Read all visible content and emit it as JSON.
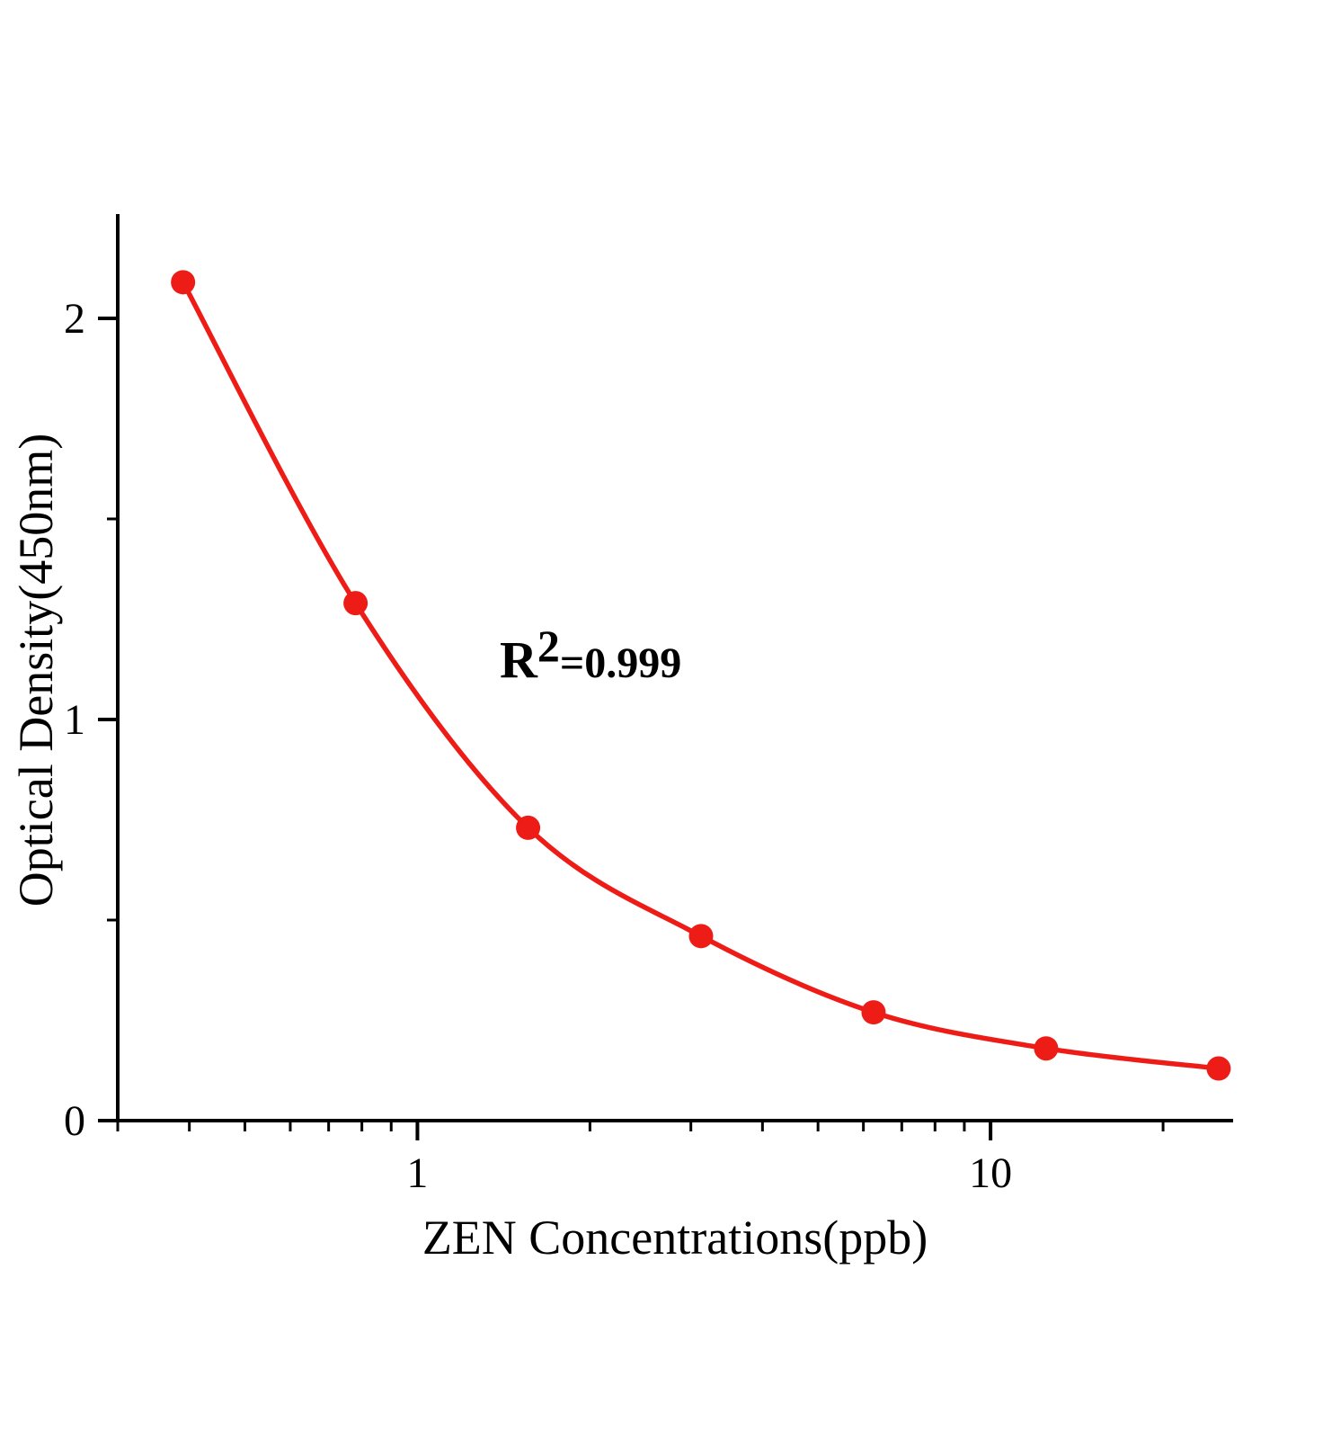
{
  "chart_data": {
    "type": "scatter",
    "title": "",
    "xlabel": "ZEN Concentrations(ppb)",
    "ylabel": "Optical Density(450nm)",
    "x_scale": "log",
    "x": [
      0.39,
      0.78,
      1.56,
      3.125,
      6.25,
      12.5,
      25
    ],
    "y": [
      2.09,
      1.29,
      0.73,
      0.46,
      0.27,
      0.18,
      0.13
    ],
    "xlim": [
      0.3,
      26.5
    ],
    "ylim": [
      0,
      2.26
    ],
    "x_major_ticks": [
      1,
      10
    ],
    "x_major_tick_labels": [
      "1",
      "10"
    ],
    "y_major_ticks": [
      0,
      1,
      2
    ],
    "y_major_tick_labels": [
      "0",
      "1",
      "2"
    ],
    "y_minor_ticks": [
      0.5,
      1.5
    ],
    "grid": "off",
    "legend": "none",
    "annotation": {
      "r_label": "R",
      "r_exponent": "2",
      "r_value": "=0.999"
    },
    "colors": {
      "curve": "#ed1c16",
      "marker": "#ed1c16",
      "axis": "#000000",
      "text": "#000000"
    }
  }
}
